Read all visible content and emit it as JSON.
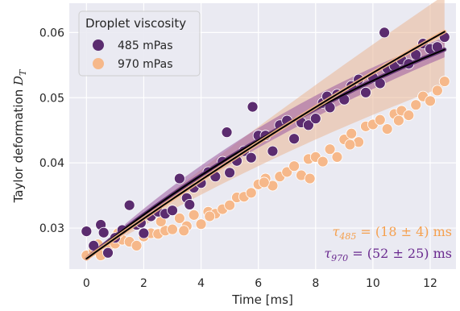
{
  "chart_data": {
    "type": "scatter",
    "xlabel": "Time [ms]",
    "ylabel": "Taylor deformation D_T",
    "ylabel_main": "Taylor deformation ",
    "ylabel_symbol": "D",
    "ylabel_sub": "T",
    "xlim": [
      -0.6,
      12.9
    ],
    "ylim": [
      0.0237,
      0.0645
    ],
    "xticks": [
      0,
      2,
      4,
      6,
      8,
      10,
      12
    ],
    "yticks": [
      0.03,
      0.04,
      0.05,
      0.06
    ],
    "ytick_labels": [
      "0.03",
      "0.04",
      "0.05",
      "0.06"
    ],
    "grid": true,
    "legend": {
      "title": "Droplet viscosity",
      "position": "top-left"
    },
    "colors": {
      "background": "#eaeaf2",
      "grid": "#ffffff",
      "series_485": "#5b2c6f",
      "series_970": "#f6b88a",
      "band_485": "#9a5aa0",
      "band_970": "#eab695",
      "fit": "#000000",
      "annot_485": "#f5a04e",
      "annot_970": "#6a2a8f"
    },
    "series": [
      {
        "name": "485 mPas",
        "fit": {
          "y0": 0.0253,
          "amplitude": 0.0641,
          "tau_ms": 18
        },
        "band": {
          "lower_tau_ms": 14,
          "upper_tau_ms": 22,
          "lower_amplitude": 0.0575,
          "upper_amplitude": 0.0713
        },
        "x": [
          0.0,
          0.25,
          0.5,
          0.75,
          1.0,
          1.25,
          1.5,
          1.75,
          2.0,
          2.25,
          2.5,
          2.75,
          3.0,
          3.25,
          3.5,
          3.75,
          4.0,
          4.25,
          4.5,
          4.75,
          5.0,
          5.25,
          5.5,
          5.75,
          6.0,
          6.25,
          6.5,
          6.75,
          7.0,
          7.25,
          7.5,
          7.75,
          8.0,
          8.25,
          8.5,
          8.75,
          9.0,
          9.25,
          9.5,
          9.75,
          10.0,
          10.25,
          10.5,
          10.75,
          11.0,
          11.25,
          11.5,
          11.75,
          12.0,
          12.25,
          12.5,
          0.6,
          1.9,
          3.6,
          4.9,
          5.8,
          8.4,
          10.4
        ],
        "y": [
          0.0295,
          0.0273,
          0.0305,
          0.0262,
          0.0285,
          0.0297,
          0.0335,
          0.0305,
          0.0292,
          0.0318,
          0.0325,
          0.0322,
          0.0327,
          0.0376,
          0.0346,
          0.0362,
          0.0369,
          0.0386,
          0.0379,
          0.0402,
          0.0385,
          0.0403,
          0.0418,
          0.0408,
          0.0442,
          0.0442,
          0.0418,
          0.0458,
          0.0465,
          0.0437,
          0.0462,
          0.0458,
          0.0468,
          0.0492,
          0.0485,
          0.0505,
          0.0497,
          0.0518,
          0.0528,
          0.0508,
          0.0531,
          0.0522,
          0.0545,
          0.0549,
          0.0558,
          0.0552,
          0.0566,
          0.0583,
          0.0575,
          0.0578,
          0.0593,
          0.0293,
          0.0308,
          0.0336,
          0.0447,
          0.0486,
          0.0502,
          0.06
        ]
      },
      {
        "name": "970 mPas",
        "fit": {
          "y0": 0.0253,
          "amplitude": 0.163,
          "tau_ms": 52
        },
        "band": {
          "lower_tau_ms": 27,
          "upper_tau_ms": 77,
          "lower_amplitude": 0.0713,
          "upper_amplitude": 0.27
        },
        "x": [
          0.0,
          0.25,
          0.5,
          0.75,
          1.0,
          1.25,
          1.5,
          1.75,
          2.0,
          2.25,
          2.5,
          2.75,
          3.0,
          3.25,
          3.5,
          3.75,
          4.0,
          4.25,
          4.5,
          4.75,
          5.0,
          5.25,
          5.5,
          5.75,
          6.0,
          6.25,
          6.5,
          6.75,
          7.0,
          7.25,
          7.5,
          7.75,
          8.0,
          8.25,
          8.5,
          8.75,
          9.0,
          9.25,
          9.5,
          9.75,
          10.0,
          10.25,
          10.5,
          10.75,
          11.0,
          11.25,
          11.5,
          11.75,
          12.0,
          12.25,
          12.5,
          0.4,
          1.1,
          2.6,
          3.4,
          4.3,
          6.2,
          7.8,
          9.2,
          10.9
        ],
        "y": [
          0.0258,
          0.0265,
          0.0258,
          0.027,
          0.0276,
          0.0282,
          0.0279,
          0.0273,
          0.0287,
          0.0292,
          0.0291,
          0.0296,
          0.0298,
          0.0315,
          0.0303,
          0.032,
          0.0306,
          0.0325,
          0.0322,
          0.0329,
          0.0335,
          0.0347,
          0.0348,
          0.0354,
          0.0367,
          0.0376,
          0.0365,
          0.0379,
          0.0386,
          0.0395,
          0.0381,
          0.0406,
          0.0409,
          0.0402,
          0.0421,
          0.0409,
          0.0436,
          0.0445,
          0.0432,
          0.0456,
          0.0459,
          0.0466,
          0.0452,
          0.0475,
          0.048,
          0.0473,
          0.0489,
          0.0502,
          0.0495,
          0.0511,
          0.0525,
          0.0275,
          0.0292,
          0.031,
          0.0296,
          0.0318,
          0.037,
          0.0376,
          0.0428,
          0.0465
        ]
      }
    ],
    "annotations": [
      {
        "symbol": "τ",
        "sub": "485",
        "text": " = (18 ±  4) ms"
      },
      {
        "symbol": "τ",
        "sub": "970",
        "text": " = (52 ± 25) ms"
      }
    ]
  }
}
